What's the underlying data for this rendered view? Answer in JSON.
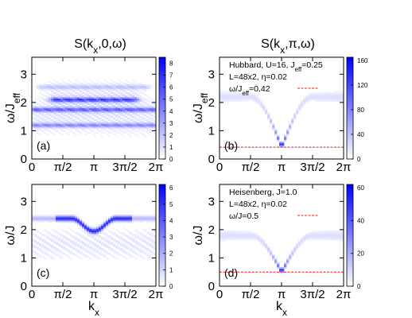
{
  "chart_data": [
    {
      "type": "heatmap",
      "id": "a",
      "title": "S(kx,0,ω)",
      "xlabel": "",
      "ylabel": "ω/Jeff",
      "xlim": [
        0,
        6.2832
      ],
      "ylim": [
        0,
        3.6
      ],
      "xticks": [
        "0",
        "π/2",
        "π",
        "3π/2",
        "2π"
      ],
      "yticks": [
        "0",
        "1",
        "2",
        "3"
      ],
      "colorbar": {
        "min": 0,
        "max": 8.5,
        "ticks": [
          "0",
          "1",
          "2",
          "3",
          "4",
          "5",
          "6",
          "7",
          "8"
        ]
      },
      "panel_label": "(a)",
      "annotations": [],
      "features": [
        {
          "kind": "band",
          "omega": 2.1,
          "k_from": 1.2,
          "k_to": 5.1,
          "intensity": 6.5
        },
        {
          "kind": "band",
          "omega": 1.75,
          "k_from": 0.2,
          "k_to": 6.1,
          "intensity": 5.0
        },
        {
          "kind": "band",
          "omega": 1.2,
          "k_from": 0.2,
          "k_to": 6.1,
          "intensity": 3.5
        },
        {
          "kind": "band",
          "omega": 2.55,
          "k_from": 0.6,
          "k_to": 5.7,
          "intensity": 1.5
        }
      ]
    },
    {
      "type": "heatmap",
      "id": "b",
      "title": "S(kx,π,ω)",
      "xlabel": "",
      "ylabel": "ω/Jeff",
      "xlim": [
        0,
        6.2832
      ],
      "ylim": [
        0,
        3.6
      ],
      "xticks": [
        "0",
        "π/2",
        "π",
        "3π/2",
        "2π"
      ],
      "yticks": [
        "0",
        "1",
        "2",
        "3"
      ],
      "colorbar": {
        "min": 0,
        "max": 165,
        "ticks": [
          "0",
          "40",
          "80",
          "120",
          "160"
        ]
      },
      "panel_label": "(b)",
      "annotations": [
        "Hubbard, U=16, Jeff=0.25",
        "L=48x2, η=0.02",
        "ω/Jeff=0.42"
      ],
      "reference_line": {
        "omega": 0.42,
        "color": "#dd2222"
      },
      "features": [
        {
          "kind": "v-dispersion",
          "omega_min": 0.42,
          "omega_edge": 2.2,
          "intensity": 160
        }
      ]
    },
    {
      "type": "heatmap",
      "id": "c",
      "title": "",
      "xlabel": "kx",
      "ylabel": "ω/J",
      "xlim": [
        0,
        6.2832
      ],
      "ylim": [
        0,
        3.6
      ],
      "xticks": [
        "0",
        "π/2",
        "π",
        "3π/2",
        "2π"
      ],
      "yticks": [
        "0",
        "1",
        "2",
        "3"
      ],
      "colorbar": {
        "min": 0,
        "max": 6.2,
        "ticks": [
          "0",
          "1",
          "2",
          "3",
          "4",
          "5",
          "6"
        ]
      },
      "panel_label": "(c)",
      "annotations": [],
      "features": [
        {
          "kind": "arch",
          "omega_center": 1.95,
          "omega_edge": 2.4,
          "k_from": 1.2,
          "k_to": 5.1,
          "intensity": 5.0
        }
      ]
    },
    {
      "type": "heatmap",
      "id": "d",
      "title": "",
      "xlabel": "kx",
      "ylabel": "ω/J",
      "xlim": [
        0,
        6.2832
      ],
      "ylim": [
        0,
        3.6
      ],
      "xticks": [
        "0",
        "π/2",
        "π",
        "3π/2",
        "2π"
      ],
      "yticks": [
        "0",
        "1",
        "2",
        "3"
      ],
      "colorbar": {
        "min": 0,
        "max": 62,
        "ticks": [
          "0",
          "20",
          "40",
          "60"
        ]
      },
      "panel_label": "(d)",
      "annotations": [
        "Heisenberg, J=1.0",
        "L=48x2, η=0.02",
        "ω/J=0.5"
      ],
      "reference_line": {
        "omega": 0.5,
        "color": "#dd2222"
      },
      "features": [
        {
          "kind": "v-dispersion",
          "omega_min": 0.5,
          "omega_edge": 1.8,
          "intensity": 60
        }
      ]
    }
  ]
}
